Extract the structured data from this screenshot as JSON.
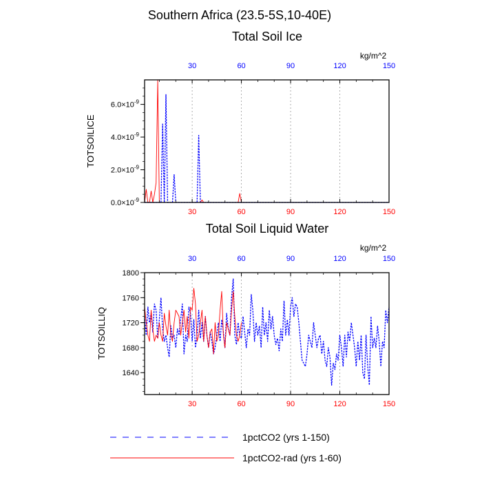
{
  "figure": {
    "title": "Southern Africa (23.5-5S,10-40E)"
  },
  "legend": {
    "items": [
      {
        "label": "1pctCO2 (yrs 1-150)",
        "color": "#0000ff",
        "style": "dashed"
      },
      {
        "label": "1pctCO2-rad (yrs 1-60)",
        "color": "#ff0000",
        "style": "solid"
      }
    ]
  },
  "chart_data": [
    {
      "type": "line",
      "title": "Total Soil Ice",
      "ylabel": "TOTSOILICE",
      "top_axis_unit": "kg/m^2",
      "xlim": [
        1,
        150
      ],
      "ylim": [
        0,
        7.5e-09
      ],
      "x_ticks": [
        30,
        60,
        90,
        120,
        150
      ],
      "y_ticks": [
        0,
        2e-09,
        4e-09,
        6e-09
      ],
      "y_tick_labels": [
        "0.0",
        "2.0",
        "4.0",
        "6.0"
      ],
      "y_tick_exp": "×10",
      "y_tick_exp_power": "-9",
      "grid_x": true,
      "series": [
        {
          "name": "1pctCO2 (yrs 1-150)",
          "color": "#0000ff",
          "dash": true,
          "x": [
            1,
            2,
            3,
            4,
            5,
            6,
            7,
            8,
            9,
            10,
            11,
            12,
            13,
            14,
            15,
            16,
            17,
            18,
            19,
            20,
            21,
            22,
            23,
            24,
            25,
            26,
            27,
            28,
            29,
            30,
            31,
            32,
            33,
            34,
            35,
            36,
            37,
            38,
            39,
            40,
            150
          ],
          "y": [
            0,
            0,
            0,
            0,
            0,
            0,
            0,
            0,
            0,
            0,
            0,
            4.8e-09,
            0,
            6.6e-09,
            0,
            0,
            0,
            0,
            1.7e-09,
            0,
            0,
            0,
            0,
            0,
            0,
            0,
            0,
            0,
            0,
            0,
            0,
            0,
            0,
            4.1e-09,
            0,
            0,
            0,
            0,
            0,
            0,
            0
          ]
        },
        {
          "name": "1pctCO2-rad (yrs 1-60)",
          "color": "#ff0000",
          "dash": false,
          "x": [
            1,
            2,
            3,
            4,
            5,
            6,
            7,
            8,
            9,
            10,
            11,
            12,
            13,
            14,
            15,
            16,
            17,
            18,
            19,
            20,
            21,
            22,
            23,
            24,
            25,
            26,
            27,
            28,
            29,
            30,
            31,
            32,
            33,
            34,
            35,
            36,
            37,
            38,
            39,
            40,
            41,
            42,
            43,
            44,
            45,
            46,
            47,
            48,
            49,
            50,
            51,
            52,
            53,
            54,
            55,
            56,
            57,
            58,
            59,
            60
          ],
          "y": [
            0,
            8e-10,
            0,
            0,
            7e-10,
            0,
            5e-10,
            1.2e-09,
            7.5e-09,
            0,
            0,
            0,
            0,
            0,
            0,
            0,
            0,
            0,
            0,
            0,
            0,
            0,
            0,
            0,
            0,
            0,
            0,
            0,
            0,
            0,
            0,
            0,
            0,
            0,
            0,
            1.5e-10,
            0,
            0,
            0,
            0,
            0,
            0,
            0,
            0,
            0,
            0,
            0,
            0,
            0,
            0,
            0,
            0,
            0,
            0,
            0,
            0,
            0,
            0,
            5.5e-10,
            0
          ]
        }
      ]
    },
    {
      "type": "line",
      "title": "Total Soil Liquid Water",
      "ylabel": "TOTSOILLIQ",
      "top_axis_unit": "kg/m^2",
      "xlim": [
        1,
        150
      ],
      "ylim": [
        1605,
        1800
      ],
      "x_ticks": [
        30,
        60,
        90,
        120,
        150
      ],
      "y_ticks": [
        1640,
        1680,
        1720,
        1760,
        1800
      ],
      "y_tick_labels": [
        "1640",
        "1680",
        "1720",
        "1760",
        "1800"
      ],
      "grid_x": true,
      "series": [
        {
          "name": "1pctCO2 (yrs 1-150)",
          "color": "#0000ff",
          "dash": true,
          "x": [
            1,
            2,
            3,
            4,
            5,
            6,
            7,
            8,
            9,
            10,
            11,
            12,
            13,
            14,
            15,
            16,
            17,
            18,
            19,
            20,
            21,
            22,
            23,
            24,
            25,
            26,
            27,
            28,
            29,
            30,
            31,
            32,
            33,
            34,
            35,
            36,
            37,
            38,
            39,
            40,
            41,
            42,
            43,
            44,
            45,
            46,
            47,
            48,
            49,
            50,
            51,
            52,
            53,
            54,
            55,
            56,
            57,
            58,
            59,
            60,
            61,
            62,
            63,
            64,
            65,
            66,
            67,
            68,
            69,
            70,
            71,
            72,
            73,
            74,
            75,
            76,
            77,
            78,
            79,
            80,
            81,
            82,
            83,
            84,
            85,
            86,
            87,
            88,
            89,
            90,
            91,
            92,
            93,
            94,
            95,
            96,
            97,
            98,
            99,
            100,
            101,
            102,
            103,
            104,
            105,
            106,
            107,
            108,
            109,
            110,
            111,
            112,
            113,
            114,
            115,
            116,
            117,
            118,
            119,
            120,
            121,
            122,
            123,
            124,
            125,
            126,
            127,
            128,
            129,
            130,
            131,
            132,
            133,
            134,
            135,
            136,
            137,
            138,
            139,
            140,
            141,
            142,
            143,
            144,
            145,
            146,
            147,
            148,
            149,
            150
          ],
          "y": [
            1730,
            1700,
            1745,
            1720,
            1735,
            1705,
            1750,
            1740,
            1695,
            1725,
            1760,
            1710,
            1690,
            1700,
            1680,
            1665,
            1715,
            1695,
            1700,
            1680,
            1710,
            1700,
            1725,
            1750,
            1670,
            1700,
            1690,
            1745,
            1735,
            1690,
            1725,
            1680,
            1700,
            1740,
            1695,
            1720,
            1690,
            1730,
            1700,
            1680,
            1705,
            1690,
            1670,
            1680,
            1700,
            1720,
            1690,
            1725,
            1705,
            1680,
            1735,
            1710,
            1700,
            1760,
            1790,
            1700,
            1685,
            1720,
            1700,
            1695,
            1730,
            1705,
            1680,
            1710,
            1700,
            1765,
            1740,
            1690,
            1720,
            1700,
            1715,
            1680,
            1745,
            1700,
            1720,
            1690,
            1740,
            1710,
            1730,
            1700,
            1685,
            1695,
            1675,
            1710,
            1690,
            1755,
            1700,
            1725,
            1700,
            1745,
            1760,
            1730,
            1750,
            1745,
            1720,
            1690,
            1660,
            1655,
            1650,
            1670,
            1700,
            1690,
            1680,
            1720,
            1700,
            1680,
            1695,
            1700,
            1670,
            1690,
            1660,
            1650,
            1680,
            1665,
            1620,
            1655,
            1645,
            1670,
            1660,
            1700,
            1680,
            1650,
            1700,
            1665,
            1705,
            1690,
            1720,
            1700,
            1680,
            1650,
            1690,
            1660,
            1700,
            1640,
            1630,
            1700,
            1650,
            1620,
            1730,
            1680,
            1695,
            1680,
            1715,
            1690,
            1650,
            1690,
            1680,
            1740,
            1720,
            1745
          ]
        },
        {
          "name": "1pctCO2-rad (yrs 1-60)",
          "color": "#ff0000",
          "dash": false,
          "x": [
            1,
            2,
            3,
            4,
            5,
            6,
            7,
            8,
            9,
            10,
            11,
            12,
            13,
            14,
            15,
            16,
            17,
            18,
            19,
            20,
            21,
            22,
            23,
            24,
            25,
            26,
            27,
            28,
            29,
            30,
            31,
            32,
            33,
            34,
            35,
            36,
            37,
            38,
            39,
            40,
            41,
            42,
            43,
            44,
            45,
            46,
            47,
            48,
            49,
            50,
            51,
            52,
            53,
            54,
            55,
            56,
            57,
            58,
            59,
            60
          ],
          "y": [
            1745,
            1720,
            1700,
            1690,
            1740,
            1710,
            1690,
            1700,
            1695,
            1720,
            1700,
            1690,
            1735,
            1715,
            1700,
            1740,
            1700,
            1690,
            1720,
            1740,
            1735,
            1730,
            1700,
            1720,
            1740,
            1705,
            1730,
            1695,
            1745,
            1740,
            1775,
            1750,
            1690,
            1700,
            1720,
            1740,
            1690,
            1730,
            1700,
            1680,
            1705,
            1710,
            1670,
            1720,
            1690,
            1700,
            1740,
            1770,
            1700,
            1680,
            1720,
            1710,
            1700,
            1740,
            1770,
            1730,
            1700,
            1690,
            1700,
            1720
          ]
        }
      ]
    }
  ]
}
